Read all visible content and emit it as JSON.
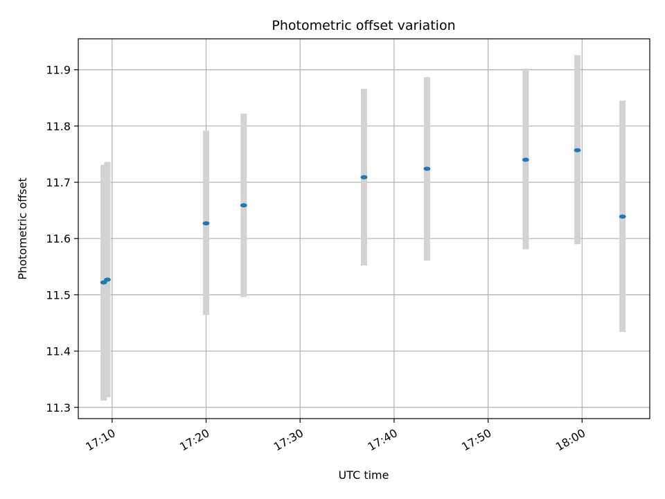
{
  "chart_data": {
    "type": "scatter",
    "title": "Photometric offset variation",
    "xlabel": "UTC time",
    "ylabel": "Photometric offset",
    "x_tick_labels": [
      "17:10",
      "17:20",
      "17:30",
      "17:40",
      "17:50",
      "18:00"
    ],
    "x_ticks_minutes": [
      1030,
      1040,
      1050,
      1060,
      1070,
      1080
    ],
    "xlim": [
      "17:06:24",
      "18:07:12"
    ],
    "y_ticks": [
      11.3,
      11.4,
      11.5,
      11.6,
      11.7,
      11.8,
      11.9
    ],
    "ylim": [
      11.28,
      11.955
    ],
    "grid": true,
    "series": [
      {
        "points": [
          {
            "x": "17:09:06",
            "y": 11.522,
            "yerr_low": 11.312,
            "yerr_high": 11.731
          },
          {
            "x": "17:09:30",
            "y": 11.527,
            "yerr_low": 11.318,
            "yerr_high": 11.736
          },
          {
            "x": "17:20:00",
            "y": 11.627,
            "yerr_low": 11.464,
            "yerr_high": 11.792
          },
          {
            "x": "17:24:00",
            "y": 11.659,
            "yerr_low": 11.496,
            "yerr_high": 11.822
          },
          {
            "x": "17:36:48",
            "y": 11.709,
            "yerr_low": 11.552,
            "yerr_high": 11.866
          },
          {
            "x": "17:43:30",
            "y": 11.724,
            "yerr_low": 11.561,
            "yerr_high": 11.887
          },
          {
            "x": "17:54:00",
            "y": 11.74,
            "yerr_low": 11.581,
            "yerr_high": 11.902
          },
          {
            "x": "17:59:30",
            "y": 11.757,
            "yerr_low": 11.59,
            "yerr_high": 11.926
          },
          {
            "x": "18:04:18",
            "y": 11.639,
            "yerr_low": 11.434,
            "yerr_high": 11.845
          }
        ]
      }
    ],
    "colors": {
      "point": "#1f77b4",
      "errorbar": "#d3d3d3",
      "grid": "#b0b0b0",
      "axis": "#000000"
    }
  }
}
